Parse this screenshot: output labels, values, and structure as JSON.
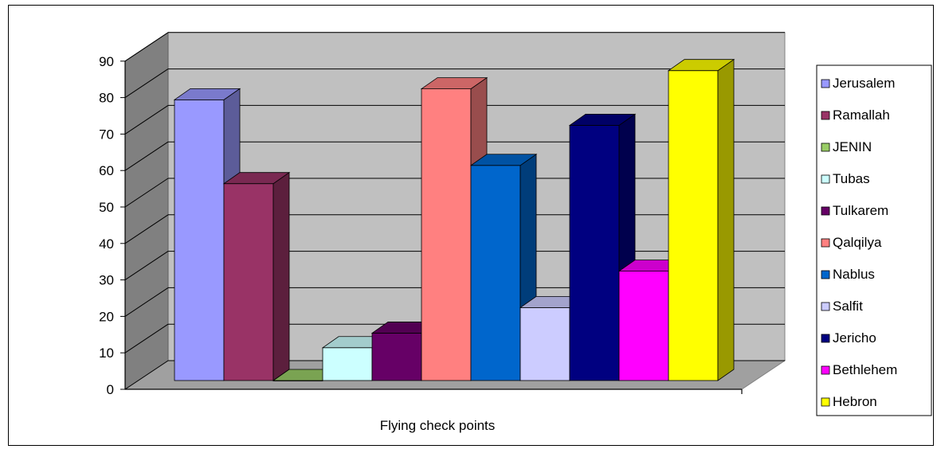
{
  "chart_data": {
    "type": "bar",
    "title": "",
    "xlabel": "Flying check points",
    "ylabel": "",
    "ylim": [
      0,
      90
    ],
    "yticks": [
      0,
      10,
      20,
      30,
      40,
      50,
      60,
      70,
      80,
      90
    ],
    "grid": true,
    "legend_position": "right",
    "series": [
      {
        "name": "Jerusalem",
        "value": 77,
        "color": "#9999FF"
      },
      {
        "name": "Ramallah",
        "value": 54,
        "color": "#993366"
      },
      {
        "name": "JENIN",
        "value": 0,
        "color": "#99CC66"
      },
      {
        "name": "Tubas",
        "value": 9,
        "color": "#CCFFFF"
      },
      {
        "name": "Tulkarem",
        "value": 13,
        "color": "#660066"
      },
      {
        "name": "Qalqilya",
        "value": 80,
        "color": "#FF8080"
      },
      {
        "name": "Nablus",
        "value": 59,
        "color": "#0066CC"
      },
      {
        "name": "Salfit",
        "value": 20,
        "color": "#CCCCFF"
      },
      {
        "name": "Jericho",
        "value": 70,
        "color": "#000080"
      },
      {
        "name": "Bethlehem",
        "value": 30,
        "color": "#FF00FF"
      },
      {
        "name": "Hebron",
        "value": 85,
        "color": "#FFFF00"
      }
    ]
  }
}
